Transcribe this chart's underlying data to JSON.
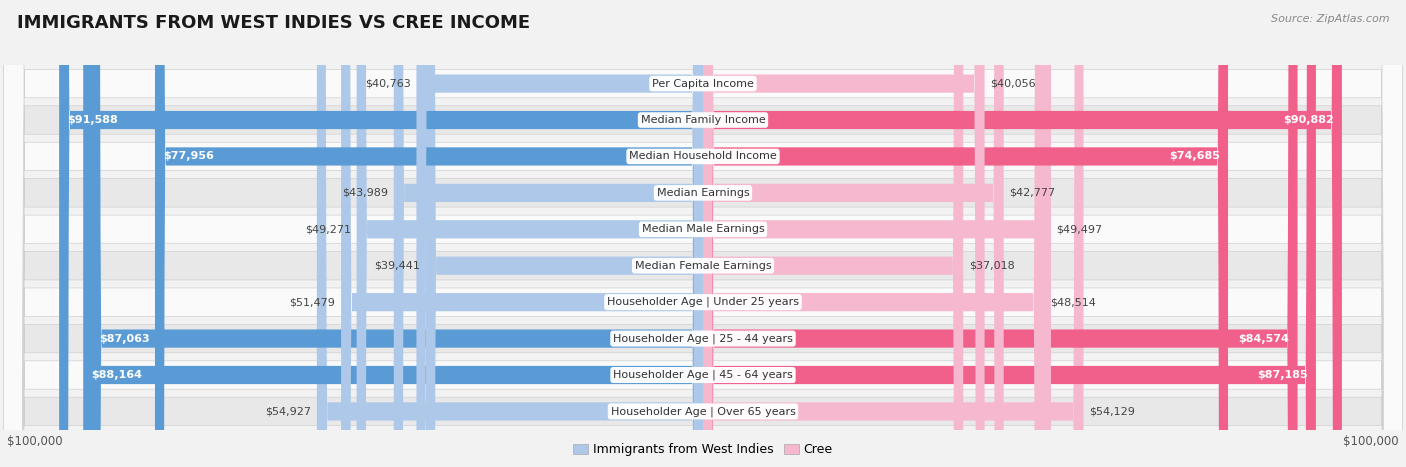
{
  "title": "IMMIGRANTS FROM WEST INDIES VS CREE INCOME",
  "source": "Source: ZipAtlas.com",
  "categories": [
    "Per Capita Income",
    "Median Family Income",
    "Median Household Income",
    "Median Earnings",
    "Median Male Earnings",
    "Median Female Earnings",
    "Householder Age | Under 25 years",
    "Householder Age | 25 - 44 years",
    "Householder Age | 45 - 64 years",
    "Householder Age | Over 65 years"
  ],
  "west_indies_values": [
    40763,
    91588,
    77956,
    43989,
    49271,
    39441,
    51479,
    87063,
    88164,
    54927
  ],
  "cree_values": [
    40056,
    90882,
    74685,
    42777,
    49497,
    37018,
    48514,
    84574,
    87185,
    54129
  ],
  "west_indies_labels": [
    "$40,763",
    "$91,588",
    "$77,956",
    "$43,989",
    "$49,271",
    "$39,441",
    "$51,479",
    "$87,063",
    "$88,164",
    "$54,927"
  ],
  "cree_labels": [
    "$40,056",
    "$90,882",
    "$74,685",
    "$42,777",
    "$49,497",
    "$37,018",
    "$48,514",
    "$84,574",
    "$87,185",
    "$54,129"
  ],
  "max_value": 100000,
  "west_indies_color_light": "#adc8e8",
  "west_indies_color_dark": "#5b9bd5",
  "cree_color_light": "#f5b8cf",
  "cree_color_dark": "#f0608a",
  "label_threshold": 68000,
  "background_color": "#f2f2f2",
  "row_bg_light": "#fafafa",
  "row_bg_dark": "#e8e8e8",
  "row_border": "#d0d0d0",
  "legend_west_indies": "Immigrants from West Indies",
  "legend_cree": "Cree",
  "xlabel_left": "$100,000",
  "xlabel_right": "$100,000",
  "title_fontsize": 13,
  "label_fontsize": 8,
  "value_fontsize": 8
}
